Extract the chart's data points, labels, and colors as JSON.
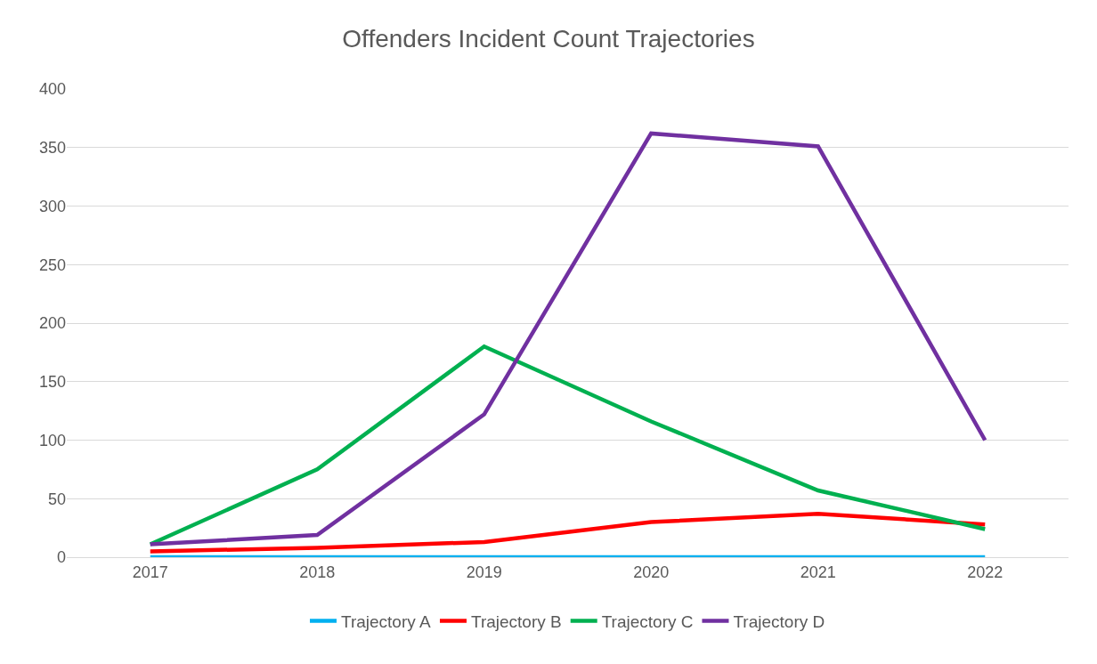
{
  "chart_data": {
    "type": "line",
    "title": "Offenders Incident Count Trajectories",
    "categories": [
      "2017",
      "2018",
      "2019",
      "2020",
      "2021",
      "2022"
    ],
    "series": [
      {
        "name": "Trajectory A",
        "color": "#00b0f0",
        "values": [
          0,
          0,
          0,
          0,
          0,
          0
        ]
      },
      {
        "name": "Trajectory B",
        "color": "#ff0000",
        "values": [
          5,
          8,
          13,
          30,
          37,
          28
        ]
      },
      {
        "name": "Trajectory C",
        "color": "#00b050",
        "values": [
          11,
          75,
          180,
          116,
          57,
          24
        ]
      },
      {
        "name": "Trajectory D",
        "color": "#7030a0",
        "values": [
          11,
          19,
          122,
          362,
          351,
          100
        ]
      }
    ],
    "ylim": [
      0,
      400
    ],
    "yticks": [
      0,
      50,
      100,
      150,
      200,
      250,
      300,
      350,
      400
    ],
    "grid": "y",
    "legend": "bottom",
    "marker": "none",
    "line_style": "solid"
  }
}
